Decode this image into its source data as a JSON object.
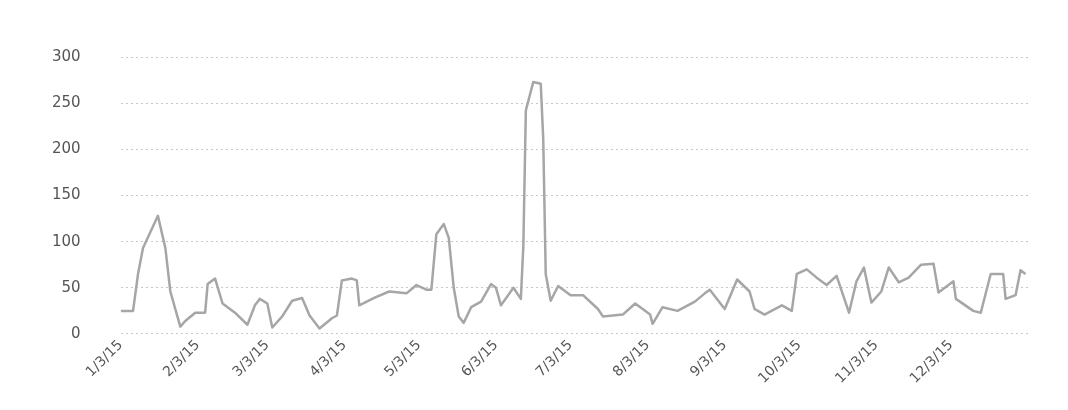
{
  "chart_data": {
    "type": "line",
    "x": [
      "2015-01-03",
      "2015-01-08",
      "2015-01-10",
      "2015-01-12",
      "2015-01-18",
      "2015-01-21",
      "2015-01-23",
      "2015-01-27",
      "2015-01-29",
      "2015-02-02",
      "2015-02-06",
      "2015-02-07",
      "2015-02-10",
      "2015-02-13",
      "2015-02-18",
      "2015-02-23",
      "2015-02-26",
      "2015-02-28",
      "2015-03-03",
      "2015-03-05",
      "2015-03-09",
      "2015-03-13",
      "2015-03-17",
      "2015-03-20",
      "2015-03-24",
      "2015-03-29",
      "2015-03-31",
      "2015-04-02",
      "2015-04-06",
      "2015-04-08",
      "2015-04-09",
      "2015-04-15",
      "2015-04-21",
      "2015-04-28",
      "2015-05-02",
      "2015-05-06",
      "2015-05-08",
      "2015-05-10",
      "2015-05-13",
      "2015-05-15",
      "2015-05-17",
      "2015-05-19",
      "2015-05-21",
      "2015-05-24",
      "2015-05-28",
      "2015-06-01",
      "2015-06-03",
      "2015-06-05",
      "2015-06-10",
      "2015-06-13",
      "2015-06-14",
      "2015-06-15",
      "2015-06-18",
      "2015-06-21",
      "2015-06-22",
      "2015-06-23",
      "2015-06-25",
      "2015-06-28",
      "2015-07-03",
      "2015-07-08",
      "2015-07-14",
      "2015-07-16",
      "2015-07-24",
      "2015-07-29",
      "2015-08-04",
      "2015-08-05",
      "2015-08-09",
      "2015-08-15",
      "2015-08-22",
      "2015-08-26",
      "2015-08-28",
      "2015-09-03",
      "2015-09-08",
      "2015-09-13",
      "2015-09-15",
      "2015-09-19",
      "2015-09-26",
      "2015-09-30",
      "2015-10-02",
      "2015-10-06",
      "2015-10-10",
      "2015-10-14",
      "2015-10-18",
      "2015-10-23",
      "2015-10-26",
      "2015-10-29",
      "2015-11-01",
      "2015-11-05",
      "2015-11-08",
      "2015-11-12",
      "2015-11-16",
      "2015-11-21",
      "2015-11-26",
      "2015-11-28",
      "2015-12-04",
      "2015-12-05",
      "2015-12-12",
      "2015-12-15",
      "2015-12-19",
      "2015-12-24",
      "2015-12-25",
      "2015-12-29",
      "2015-12-31",
      "2016-01-02"
    ],
    "series": [
      {
        "color": "#a6a6a6",
        "values": [
          25,
          25,
          65,
          93,
          128,
          93,
          46,
          8,
          14,
          23,
          23,
          54,
          60,
          33,
          23,
          10,
          31,
          38,
          33,
          7,
          19,
          36,
          39,
          20,
          6,
          17,
          20,
          58,
          60,
          58,
          31,
          39,
          46,
          44,
          53,
          48,
          48,
          108,
          119,
          104,
          50,
          19,
          12,
          29,
          35,
          54,
          50,
          31,
          50,
          38,
          96,
          242,
          273,
          271,
          211,
          65,
          36,
          52,
          42,
          42,
          27,
          19,
          21,
          33,
          21,
          11,
          29,
          25,
          35,
          44,
          48,
          27,
          59,
          46,
          27,
          21,
          31,
          25,
          65,
          70,
          61,
          53,
          63,
          23,
          57,
          72,
          34,
          46,
          72,
          56,
          61,
          75,
          76,
          45,
          57,
          38,
          25,
          23,
          65,
          65,
          38,
          42,
          69,
          65
        ]
      }
    ],
    "xlim": [
      "2015-01-03",
      "2016-01-03"
    ],
    "xticks": [
      {
        "value": "2015-01-03",
        "label": "1/3/15"
      },
      {
        "value": "2015-02-03",
        "label": "2/3/15"
      },
      {
        "value": "2015-03-03",
        "label": "3/3/15"
      },
      {
        "value": "2015-04-03",
        "label": "4/3/15"
      },
      {
        "value": "2015-05-03",
        "label": "5/3/15"
      },
      {
        "value": "2015-06-03",
        "label": "6/3/15"
      },
      {
        "value": "2015-07-03",
        "label": "7/3/15"
      },
      {
        "value": "2015-08-03",
        "label": "8/3/15"
      },
      {
        "value": "2015-09-03",
        "label": "9/3/15"
      },
      {
        "value": "2015-10-03",
        "label": "10/3/15"
      },
      {
        "value": "2015-11-03",
        "label": "11/3/15"
      },
      {
        "value": "2015-12-03",
        "label": "12/3/15"
      }
    ],
    "ylim": [
      0,
      300
    ],
    "yticks": [
      0,
      50,
      100,
      150,
      200,
      250,
      300
    ],
    "grid": "y",
    "legend": false,
    "marker": "none",
    "line_style": "solid"
  }
}
